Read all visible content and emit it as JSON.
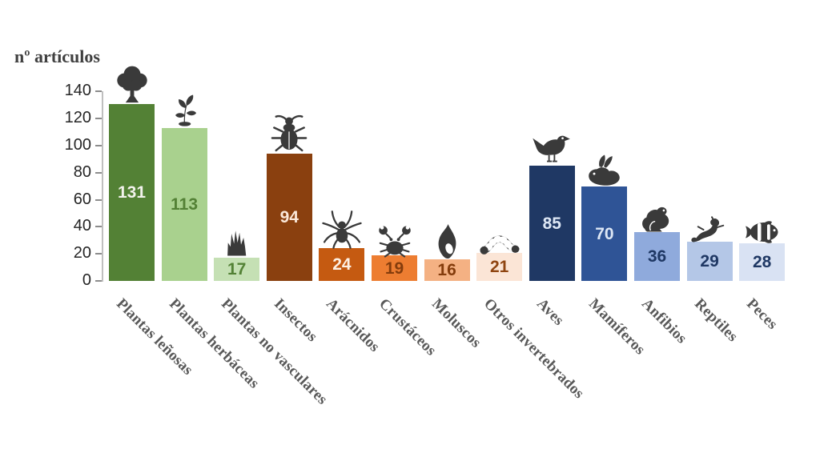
{
  "chart_data": {
    "type": "bar",
    "title": "nº artículos",
    "ylabel": "nº artículos",
    "xlabel": "",
    "ylim": [
      0,
      140
    ],
    "y_ticks": [
      0,
      20,
      40,
      60,
      80,
      100,
      120,
      140
    ],
    "grid": false,
    "legend": false,
    "categories": [
      "Plantas leñosas",
      "Plantas herbáceas",
      "Plantas no vasculares",
      "Insectos",
      "Arácnidos",
      "Crustáceos",
      "Moluscos",
      "Otros invertebrados",
      "Aves",
      "Mamíferos",
      "Anfibios",
      "Reptiles",
      "Peces"
    ],
    "values": [
      131,
      113,
      17,
      94,
      24,
      19,
      16,
      21,
      85,
      70,
      36,
      29,
      28
    ],
    "bars": [
      {
        "label": "Plantas leñosas",
        "value": 131,
        "color": "#538135",
        "value_color": "#f2f2ec",
        "icon": "tree-icon"
      },
      {
        "label": "Plantas herbáceas",
        "value": 113,
        "color": "#a9d18e",
        "value_color": "#538135",
        "icon": "seedling-icon"
      },
      {
        "label": "Plantas no vasculares",
        "value": 17,
        "color": "#c5e0b4",
        "value_color": "#538135",
        "icon": "moss-icon"
      },
      {
        "label": "Insectos",
        "value": 94,
        "color": "#8a400f",
        "value_color": "#fbe8d9",
        "icon": "beetle-icon"
      },
      {
        "label": "Arácnidos",
        "value": 24,
        "color": "#c55a11",
        "value_color": "#fdf0e4",
        "icon": "spider-icon"
      },
      {
        "label": "Crustáceos",
        "value": 19,
        "color": "#ed7d31",
        "value_color": "#843c0c",
        "icon": "crab-icon"
      },
      {
        "label": "Moluscos",
        "value": 16,
        "color": "#f4b183",
        "value_color": "#843c0c",
        "icon": "shell-icon"
      },
      {
        "label": "Otros invertebrados",
        "value": 21,
        "color": "#fbe5d6",
        "value_color": "#8f4511",
        "icon": "worm-icon"
      },
      {
        "label": "Aves",
        "value": 85,
        "color": "#1f3864",
        "value_color": "#dde7f5",
        "icon": "bird-icon"
      },
      {
        "label": "Mamíferos",
        "value": 70,
        "color": "#2f5496",
        "value_color": "#dde7f5",
        "icon": "rabbit-icon"
      },
      {
        "label": "Anfibios",
        "value": 36,
        "color": "#8faadc",
        "value_color": "#1f3864",
        "icon": "frog-icon"
      },
      {
        "label": "Reptiles",
        "value": 29,
        "color": "#b4c7e7",
        "value_color": "#1f3864",
        "icon": "gecko-icon"
      },
      {
        "label": "Peces",
        "value": 28,
        "color": "#d9e2f3",
        "value_color": "#1f3864",
        "icon": "fish-icon"
      }
    ],
    "colors": {
      "axis_line": "#bfbfbf",
      "tick_mark": "#8c8c8c",
      "tick_label": "#262626",
      "category_label": "#595959",
      "icon": "#3a3a3a",
      "background": "#ffffff"
    }
  }
}
